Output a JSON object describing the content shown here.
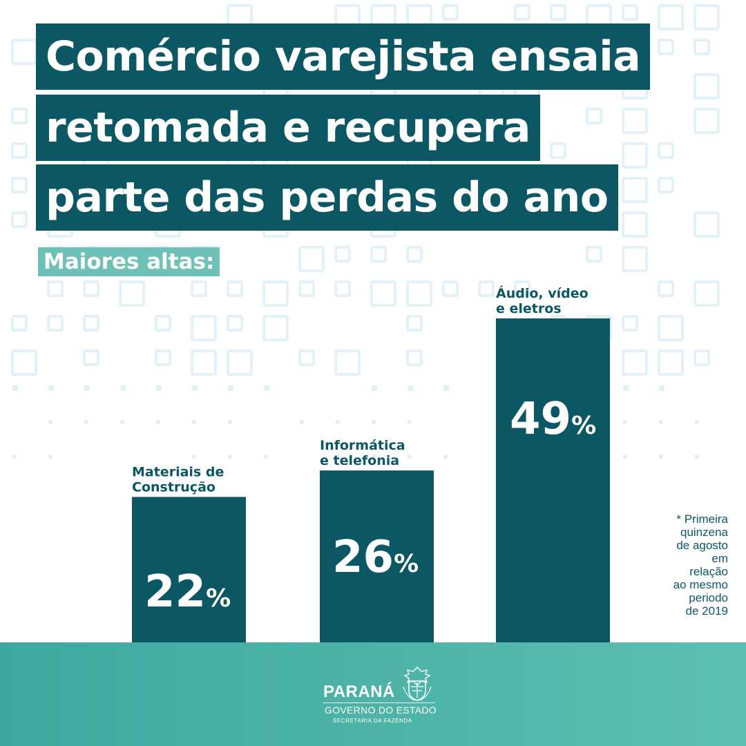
{
  "title_lines": [
    "Comércio varejista ensaia",
    "retomada e recupera",
    "parte das perdas do ano"
  ],
  "subtitle": "Maiores altas:",
  "chart_data": {
    "type": "bar",
    "categories": [
      [
        "Materiais de",
        "Construção"
      ],
      [
        "Informática",
        "e telefonia"
      ],
      [
        "Áudio, vídeo",
        "e eletros"
      ]
    ],
    "values": [
      22,
      26,
      49
    ],
    "value_labels": [
      "22",
      "26",
      "49"
    ],
    "unit": "%",
    "ylim": [
      0,
      50
    ],
    "grid": false,
    "legend": "none",
    "title": "Maiores altas:",
    "xlabel": "",
    "ylabel": ""
  },
  "footnote_lines": [
    "* Primeira",
    "quinzena",
    "de agosto",
    "em",
    "relação",
    "ao mesmo",
    "periodo",
    "de 2019"
  ],
  "footer": {
    "brand": "PARANÁ",
    "government": "GOVERNO DO ESTADO",
    "department": "SECRETARIA DA FAZENDA"
  },
  "icons": {
    "crest": "parana-coat-of-arms-icon",
    "background": "square-pattern"
  },
  "colors": {
    "primary": "#0b5763",
    "accent": "#6ec1b6",
    "footer": "#4db3a7",
    "pattern": "#e2f1f8"
  }
}
